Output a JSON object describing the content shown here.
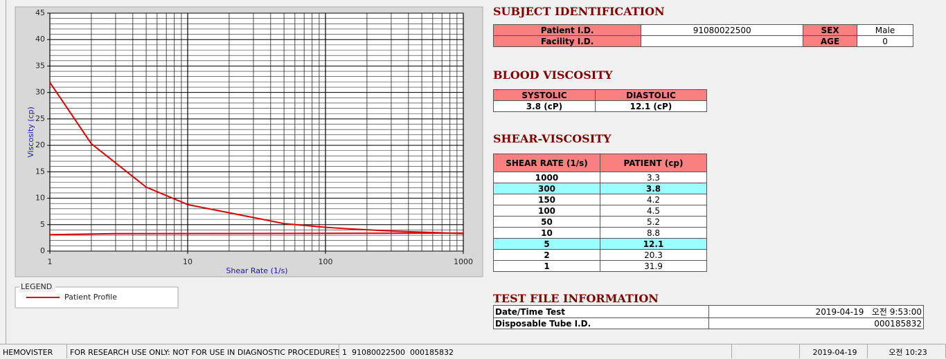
{
  "chart_data": {
    "type": "line",
    "x_label": "Shear Rate (1/s)",
    "y_label": "Viscosity (cp)",
    "xlim": [
      1,
      1000
    ],
    "xticks": [
      1,
      10,
      100,
      1000
    ],
    "x_log": true,
    "ylim": [
      0,
      45
    ],
    "yticks": [
      0,
      5,
      10,
      15,
      20,
      25,
      30,
      35,
      40,
      45
    ],
    "grid": true,
    "legend_title": "LEGEND",
    "series": [
      {
        "name": "Patient Profile",
        "color": "#dd0000",
        "x": [
          1,
          2,
          5,
          10,
          50,
          100,
          150,
          300,
          1000
        ],
        "values": [
          31.9,
          20.3,
          12.1,
          8.8,
          5.2,
          4.5,
          4.2,
          3.8,
          3.3
        ]
      },
      {
        "color": "#dd0000",
        "x": [
          1,
          3,
          1000
        ],
        "values": [
          3.1,
          3.3,
          3.4
        ]
      }
    ]
  },
  "subject": {
    "title": "SUBJECT IDENTIFICATION",
    "rows": [
      [
        "Patient I.D.",
        "91080022500",
        "SEX",
        "Male"
      ],
      [
        "Facility I.D.",
        null,
        "AGE",
        "0"
      ]
    ]
  },
  "blood": {
    "title": "BLOOD VISCOSITY",
    "headers": [
      "SYSTOLIC",
      "DIASTOLIC"
    ],
    "values": [
      "3.8 (cP)",
      "12.1 (cP)"
    ]
  },
  "shear": {
    "title": "SHEAR-VISCOSITY",
    "headers": [
      "SHEAR RATE (1/s)",
      "PATIENT (cp)"
    ],
    "rows": [
      {
        "rate": 1000,
        "value": 3.3
      },
      {
        "rate": 300,
        "value": 3.8,
        "highlight": true
      },
      {
        "rate": 150,
        "value": 4.2
      },
      {
        "rate": 100,
        "value": 4.5
      },
      {
        "rate": 50,
        "value": 5.2
      },
      {
        "rate": 10,
        "value": 8.8
      },
      {
        "rate": 5,
        "value": 12.1,
        "highlight": true
      },
      {
        "rate": 2,
        "value": 20.3
      },
      {
        "rate": 1,
        "value": 31.9
      }
    ]
  },
  "test_file": {
    "title": "TEST FILE INFORMATION",
    "rows": [
      [
        "Date/Time Test",
        "2019-04-19   오전 9:53:00"
      ],
      [
        "Disposable Tube I.D.",
        "000185832"
      ]
    ]
  },
  "status_bar": [
    "HEMOVISTER",
    "FOR RESEARCH USE ONLY: NOT FOR USE IN DIAGNOSTIC PROCEDURES",
    "1  91080022500  000185832",
    null,
    "2019-04-19",
    "오전 10:23"
  ]
}
